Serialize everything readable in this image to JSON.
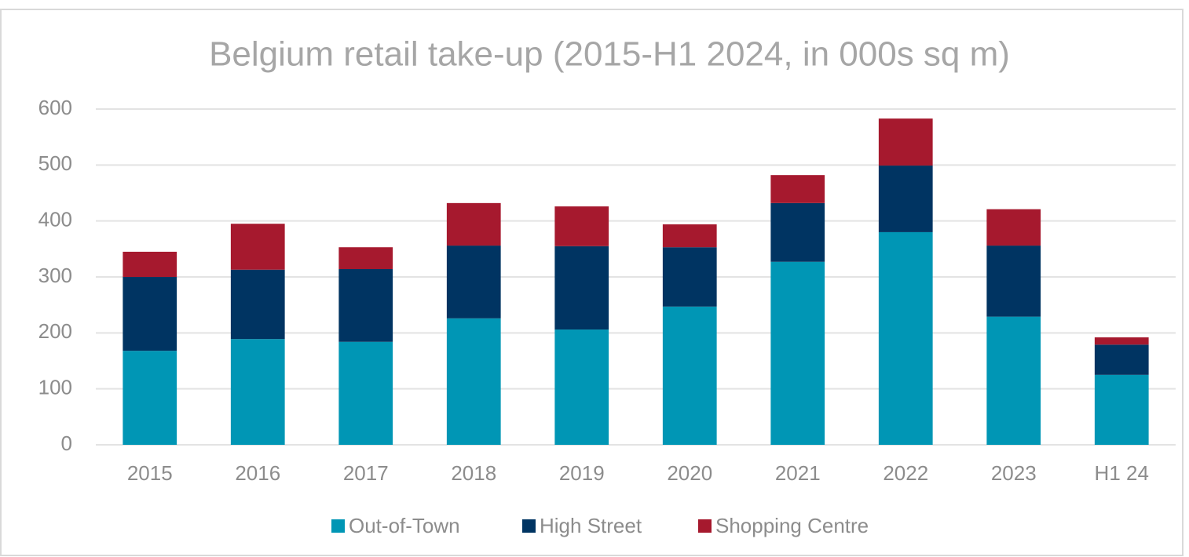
{
  "chart_data": {
    "type": "stacked_bar",
    "title": "Belgium retail take-up (2015-H1 2024, in 000s sq m)",
    "categories": [
      "2015",
      "2016",
      "2017",
      "2018",
      "2019",
      "2020",
      "2021",
      "2022",
      "2023",
      "H1 24"
    ],
    "series": [
      {
        "name": "Out-of-Town",
        "color": "#0096b5",
        "values": [
          168,
          189,
          184,
          226,
          206,
          247,
          327,
          380,
          229,
          125
        ]
      },
      {
        "name": "High Street",
        "color": "#003462",
        "values": [
          132,
          124,
          130,
          130,
          149,
          106,
          105,
          119,
          127,
          54
        ]
      },
      {
        "name": "Shopping Centre",
        "color": "#a6192e",
        "values": [
          45,
          82,
          39,
          76,
          71,
          41,
          50,
          84,
          65,
          13
        ]
      }
    ],
    "ylim": [
      0,
      600
    ],
    "yticks": [
      0,
      100,
      200,
      300,
      400,
      500,
      600
    ],
    "grid": true,
    "legend": "bottom"
  }
}
